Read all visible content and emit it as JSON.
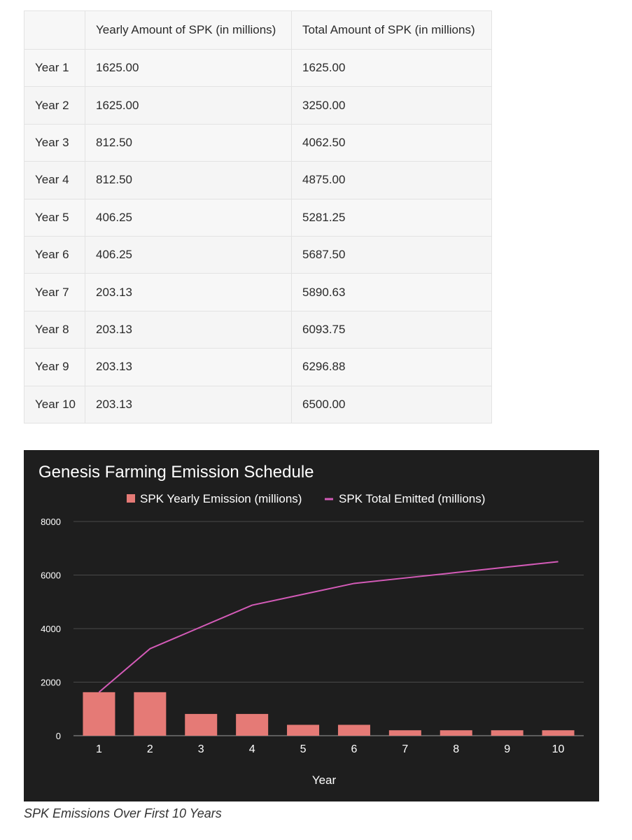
{
  "table": {
    "headers": [
      "",
      "Yearly Amount of SPK (in millions)",
      "Total Amount of SPK (in millions)"
    ],
    "rows": [
      [
        "Year 1",
        "1625.00",
        "1625.00"
      ],
      [
        "Year 2",
        "1625.00",
        "3250.00"
      ],
      [
        "Year 3",
        "812.50",
        "4062.50"
      ],
      [
        "Year 4",
        "812.50",
        "4875.00"
      ],
      [
        "Year 5",
        "406.25",
        "5281.25"
      ],
      [
        "Year 6",
        "406.25",
        "5687.50"
      ],
      [
        "Year 7",
        "203.13",
        "5890.63"
      ],
      [
        "Year 8",
        "203.13",
        "6093.75"
      ],
      [
        "Year 9",
        "203.13",
        "6296.88"
      ],
      [
        "Year 10",
        "203.13",
        "6500.00"
      ]
    ]
  },
  "chart_data": {
    "type": "bar",
    "title": "Genesis Farming Emission Schedule",
    "xlabel": "Year",
    "ylabel": "",
    "categories": [
      "1",
      "2",
      "3",
      "4",
      "5",
      "6",
      "7",
      "8",
      "9",
      "10"
    ],
    "ylim": [
      0,
      8000
    ],
    "yticks": [
      "0",
      "2000",
      "4000",
      "6000",
      "8000"
    ],
    "grid": true,
    "legend": "top",
    "series": [
      {
        "name": "SPK Yearly Emission (millions)",
        "kind": "bar",
        "color": "#e57a76",
        "values": [
          1625,
          1625,
          812.5,
          812.5,
          406.25,
          406.25,
          203.13,
          203.13,
          203.13,
          203.13
        ]
      },
      {
        "name": "SPK Total Emitted (millions)",
        "kind": "line",
        "color": "#d45bb8",
        "values": [
          1625,
          3250,
          4062.5,
          4875,
          5281.25,
          5687.5,
          5890.63,
          6093.75,
          6296.88,
          6500
        ]
      }
    ]
  },
  "caption": "SPK Emissions Over First 10 Years",
  "colors": {
    "chart_background": "#1e1e1e",
    "gridline": "#4a4a4a"
  }
}
